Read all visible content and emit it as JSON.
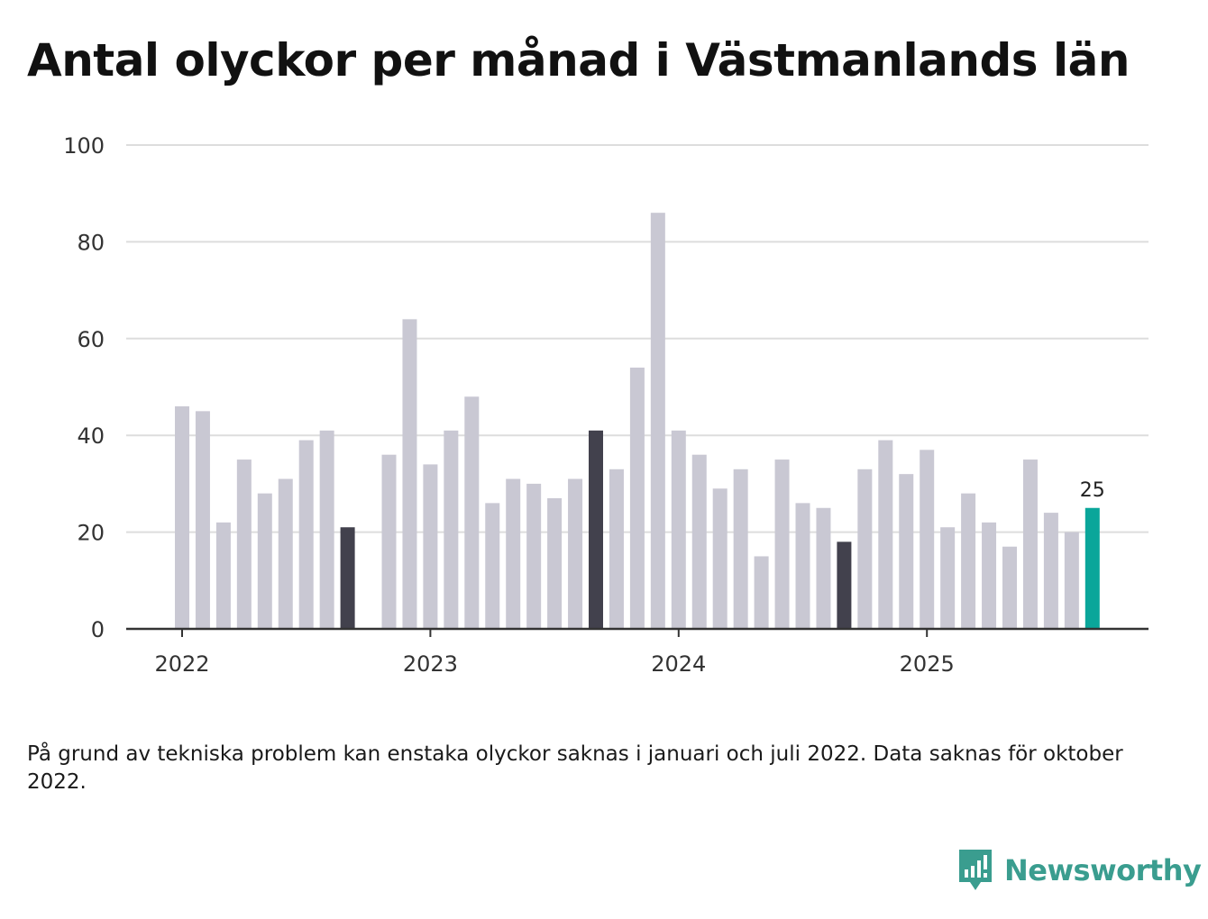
{
  "title": "Antal olyckor per månad i Västmanlands län",
  "note": "På grund av tekniska problem kan enstaka olyckor saknas i januari och juli 2022. Data saknas för oktober 2022.",
  "logo": {
    "brand": "Newsworthy",
    "color": "#3a9d8f"
  },
  "colors": {
    "bar_default": "#c9c8d3",
    "bar_highlight": "#42414d",
    "bar_latest": "#0aa69a",
    "grid": "#dddddd",
    "axis": "#333333"
  },
  "chart_data": {
    "type": "bar",
    "title": "Antal olyckor per månad i Västmanlands län",
    "xlabel": "",
    "ylabel": "",
    "ylim": [
      0,
      100
    ],
    "y_ticks": [
      "0",
      "20",
      "40",
      "60",
      "80",
      "100"
    ],
    "x_tick_labels": [
      {
        "label": "2022",
        "month_index": 0
      },
      {
        "label": "2023",
        "month_index": 12
      },
      {
        "label": "2024",
        "month_index": 24
      },
      {
        "label": "2025",
        "month_index": 36
      }
    ],
    "categories": [
      "2022-01",
      "2022-02",
      "2022-03",
      "2022-04",
      "2022-05",
      "2022-06",
      "2022-07",
      "2022-08",
      "2022-09",
      "2022-10",
      "2022-11",
      "2022-12",
      "2023-01",
      "2023-02",
      "2023-03",
      "2023-04",
      "2023-05",
      "2023-06",
      "2023-07",
      "2023-08",
      "2023-09",
      "2023-10",
      "2023-11",
      "2023-12",
      "2024-01",
      "2024-02",
      "2024-03",
      "2024-04",
      "2024-05",
      "2024-06",
      "2024-07",
      "2024-08",
      "2024-09",
      "2024-10",
      "2024-11",
      "2024-12",
      "2025-01",
      "2025-02",
      "2025-03",
      "2025-04",
      "2025-05",
      "2025-06",
      "2025-07",
      "2025-08",
      "2025-09"
    ],
    "values": [
      46,
      45,
      22,
      35,
      28,
      31,
      39,
      41,
      21,
      null,
      36,
      64,
      34,
      41,
      48,
      26,
      31,
      30,
      27,
      31,
      41,
      33,
      54,
      86,
      41,
      36,
      29,
      33,
      15,
      35,
      26,
      25,
      18,
      33,
      39,
      32,
      37,
      21,
      28,
      22,
      17,
      35,
      24,
      20,
      25
    ],
    "highlight_indices": [
      8,
      20,
      32
    ],
    "latest_index": 44,
    "annotations": [
      {
        "month_index": 44,
        "text": "25"
      }
    ],
    "grid": true
  }
}
